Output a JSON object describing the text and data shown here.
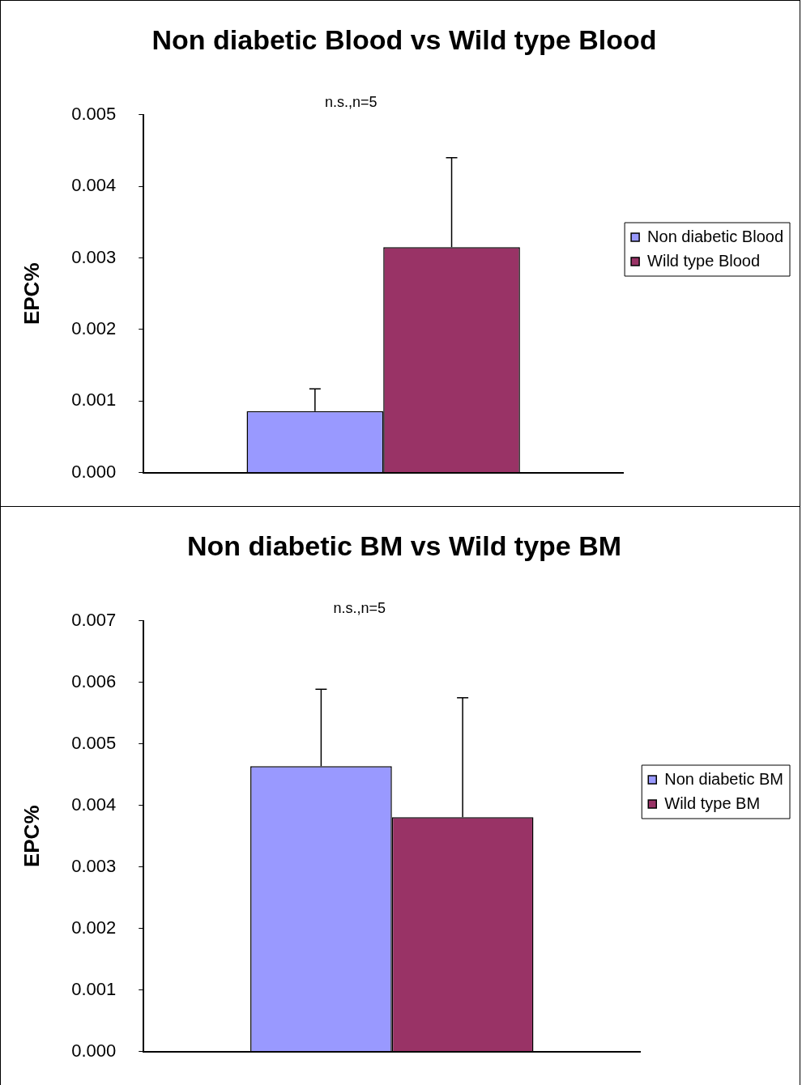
{
  "chart_data": [
    {
      "type": "bar",
      "title": "Non diabetic Blood vs Wild type Blood",
      "ylabel": "EPC%",
      "categories": [
        null
      ],
      "annotations": [
        "n.s.,n=5"
      ],
      "ylim": [
        0,
        0.005
      ],
      "yticks": [
        {
          "value": 0,
          "label": "0.000"
        },
        {
          "value": 0.001,
          "label": "0.001"
        },
        {
          "value": 0.002,
          "label": "0.002"
        },
        {
          "value": 0.003,
          "label": "0.003"
        },
        {
          "value": 0.004,
          "label": "0.004"
        },
        {
          "value": 0.005,
          "label": "0.005"
        }
      ],
      "grid": false,
      "legend": "right",
      "series": [
        {
          "name": "Non diabetic Blood",
          "color": "#9999ff",
          "values": [
            0.00086
          ],
          "errors": [
            [
              0.00086,
              0.00117
            ]
          ]
        },
        {
          "name": "Wild type Blood",
          "color": "#993366",
          "values": [
            0.00315
          ],
          "errors": [
            [
              0.00315,
              0.0044
            ]
          ]
        }
      ]
    },
    {
      "type": "bar",
      "title": "Non diabetic BM vs Wild type BM",
      "ylabel": "EPC%",
      "categories": [
        null
      ],
      "annotations": [
        "n.s.,n=5"
      ],
      "ylim": [
        0,
        0.007
      ],
      "yticks": [
        {
          "value": 0,
          "label": "0.000"
        },
        {
          "value": 0.001,
          "label": "0.001"
        },
        {
          "value": 0.002,
          "label": "0.002"
        },
        {
          "value": 0.003,
          "label": "0.003"
        },
        {
          "value": 0.004,
          "label": "0.004"
        },
        {
          "value": 0.005,
          "label": "0.005"
        },
        {
          "value": 0.006,
          "label": "0.006"
        },
        {
          "value": 0.007,
          "label": "0.007"
        }
      ],
      "grid": false,
      "legend": "right",
      "series": [
        {
          "name": "Non diabetic BM",
          "color": "#9999ff",
          "values": [
            0.00464
          ],
          "errors": [
            [
              0.00464,
              0.00589
            ]
          ]
        },
        {
          "name": "Wild type BM",
          "color": "#993366",
          "values": [
            0.00381
          ],
          "errors": [
            [
              0.00381,
              0.00575
            ]
          ]
        }
      ]
    }
  ]
}
